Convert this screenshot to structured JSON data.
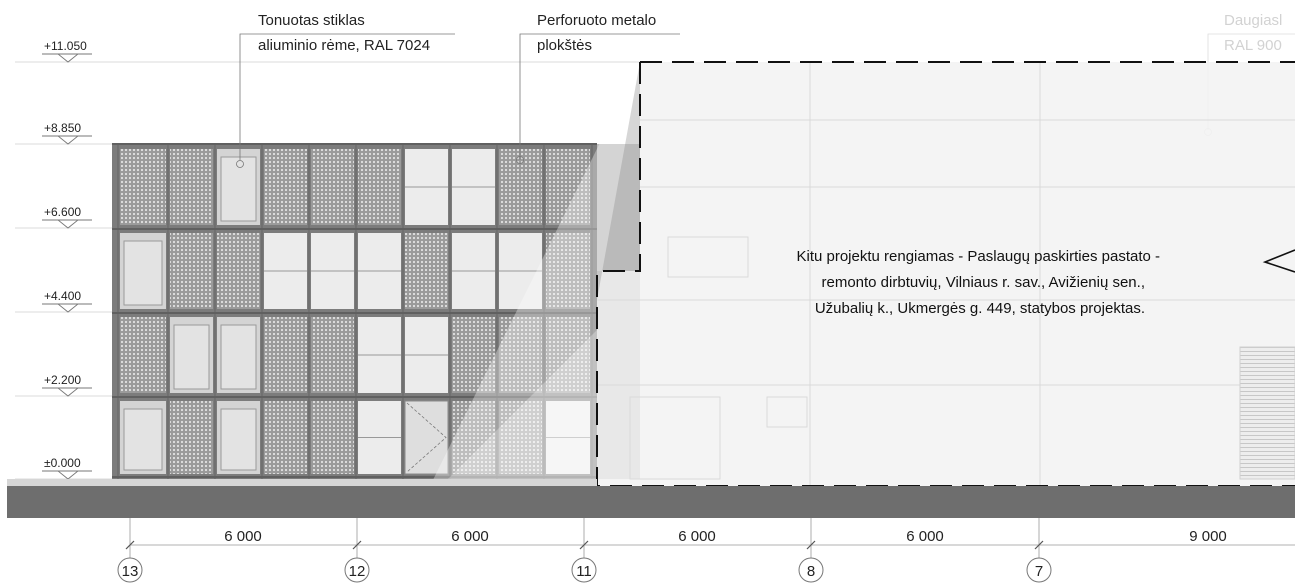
{
  "levels": [
    {
      "label": "+11.050"
    },
    {
      "label": "+8.850"
    },
    {
      "label": "+6.600"
    },
    {
      "label": "+4.400"
    },
    {
      "label": "+2.200"
    },
    {
      "label": "±0.000"
    }
  ],
  "annotations": {
    "glass": {
      "line1": "Tonuotas stiklas",
      "line2": "aliuminio rėme, RAL 7024"
    },
    "metal": {
      "line1": "Perforuoto metalo",
      "line2": "plokštės"
    },
    "faded": {
      "line1": "Daugiasl",
      "line2": "RAL 900"
    }
  },
  "note": {
    "line1": "Kitu projektu rengiamas - Paslaugų paskirties pastato -",
    "line2": "remonto dirbtuvių, Vilniaus r. sav., Avižienių sen.,",
    "line3": "Užubalių k., Ukmergės g. 449, statybos projektas."
  },
  "dimensions": [
    {
      "label": "6 000"
    },
    {
      "label": "6 000"
    },
    {
      "label": "6 000"
    },
    {
      "label": "6 000"
    },
    {
      "label": "9 000"
    }
  ],
  "axes": [
    {
      "label": "13"
    },
    {
      "label": "12"
    },
    {
      "label": "11"
    },
    {
      "label": "8"
    },
    {
      "label": "7"
    }
  ],
  "colors": {
    "ground": "#6e6e6e",
    "frame": "#7a7a7a",
    "panel_dark": "#a8a8a8",
    "panel_light": "#d8d8d8",
    "glass": "#ececec",
    "overlay": "#e9e9e9"
  }
}
